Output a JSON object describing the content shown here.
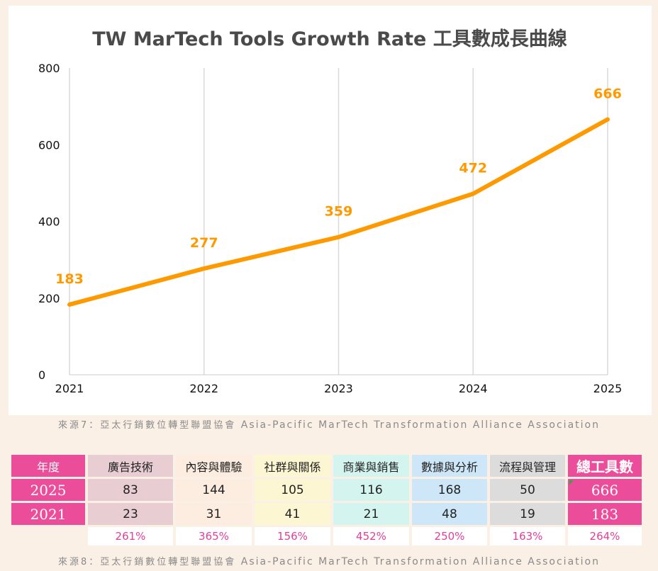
{
  "chart_data": {
    "type": "line",
    "title": "TW MarTech Tools Growth Rate 工具數成長曲線",
    "x": [
      "2021",
      "2022",
      "2023",
      "2024",
      "2025"
    ],
    "series": [
      {
        "values": [
          183,
          277,
          359,
          472,
          666
        ],
        "color": "#ff9900"
      }
    ],
    "data_labels": [
      "183",
      "277",
      "359",
      "472",
      "666"
    ],
    "y_ticks": [
      "0",
      "200",
      "400",
      "600",
      "800"
    ],
    "ylim": [
      0,
      800
    ],
    "grid": "vertical",
    "legend": "none",
    "label_color": "#ff9900"
  },
  "caption_chart": {
    "head": "來源7：亞太行銷數位轉型聯盟協會",
    "tail": "Asia-Pacific MarTech Transformation Alliance Association"
  },
  "caption_table": {
    "head": "來源8：亞太行銷數位轉型聯盟協會",
    "tail": "Asia-Pacific MarTech Transformation Alliance Association"
  },
  "table": {
    "header": {
      "year_label": "年度",
      "categories": [
        "廣告技術",
        "內容與體驗",
        "社群與關係",
        "商業與銷售",
        "數據與分析",
        "流程與管理"
      ],
      "total_label": "總工具數"
    },
    "rows": [
      {
        "year": "2025",
        "values": [
          "83",
          "144",
          "105",
          "116",
          "168",
          "50"
        ],
        "total": "666"
      },
      {
        "year": "2021",
        "values": [
          "23",
          "31",
          "41",
          "21",
          "48",
          "19"
        ],
        "total": "183"
      }
    ],
    "growth": [
      "261%",
      "365%",
      "156%",
      "452%",
      "250%",
      "163%",
      "264%"
    ],
    "category_colors": [
      "#e8cdd3",
      "#fdece0",
      "#fdf6d3",
      "#d4f5ef",
      "#cde7f9",
      "#dcdcdc"
    ],
    "accent": "#ec4d9b"
  }
}
